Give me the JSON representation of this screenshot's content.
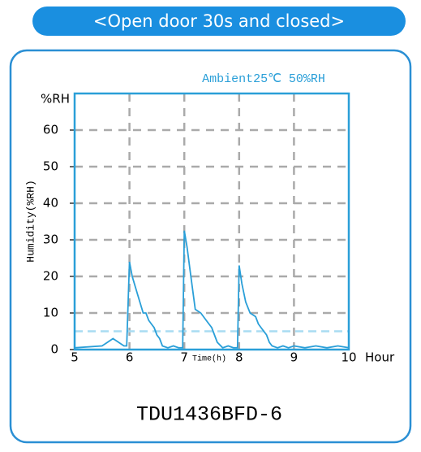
{
  "banner": "<Open door 30s and closed>",
  "model": "TDU1436BFD-6",
  "chart_data": {
    "type": "line",
    "annotation": "Ambient25℃  50%RH",
    "y_unit_label": "%RH",
    "x_unit_label": "Hour",
    "xlabel": "Time(h)",
    "ylabel": "Humidity(%RH)",
    "x": [
      5.0,
      5.5,
      5.6,
      5.7,
      5.8,
      5.9,
      5.95,
      6.0,
      6.05,
      6.15,
      6.25,
      6.3,
      6.35,
      6.4,
      6.45,
      6.5,
      6.55,
      6.6,
      6.7,
      6.8,
      6.9,
      6.97,
      7.0,
      7.05,
      7.12,
      7.2,
      7.3,
      7.4,
      7.45,
      7.5,
      7.55,
      7.6,
      7.7,
      7.8,
      7.9,
      7.97,
      8.0,
      8.05,
      8.12,
      8.2,
      8.3,
      8.35,
      8.4,
      8.5,
      8.55,
      8.6,
      8.7,
      8.8,
      8.9,
      9.0,
      9.2,
      9.4,
      9.6,
      9.8,
      10.0
    ],
    "values": [
      0.5,
      1,
      2,
      3,
      2,
      1,
      1,
      24,
      20,
      15,
      10,
      10,
      8,
      7,
      6,
      4,
      3,
      1,
      0.5,
      1,
      0.5,
      0.5,
      32.5,
      28,
      20,
      11,
      10,
      8,
      7,
      6,
      4,
      2,
      0.5,
      1,
      0.5,
      0.5,
      23,
      18,
      13,
      10,
      9,
      7,
      6,
      4,
      2,
      1,
      0.5,
      1,
      0.5,
      1,
      0.5,
      1,
      0.5,
      1,
      0.5
    ],
    "color": "#2a9fd8",
    "reference_line": 5,
    "reference_color": "#a8dcf2",
    "xlim": [
      5,
      10
    ],
    "xticks": [
      5,
      6,
      7,
      8,
      9,
      10
    ],
    "ylim": [
      0,
      70
    ],
    "yticks": [
      0,
      10,
      20,
      30,
      40,
      50,
      60
    ],
    "grid": true
  }
}
